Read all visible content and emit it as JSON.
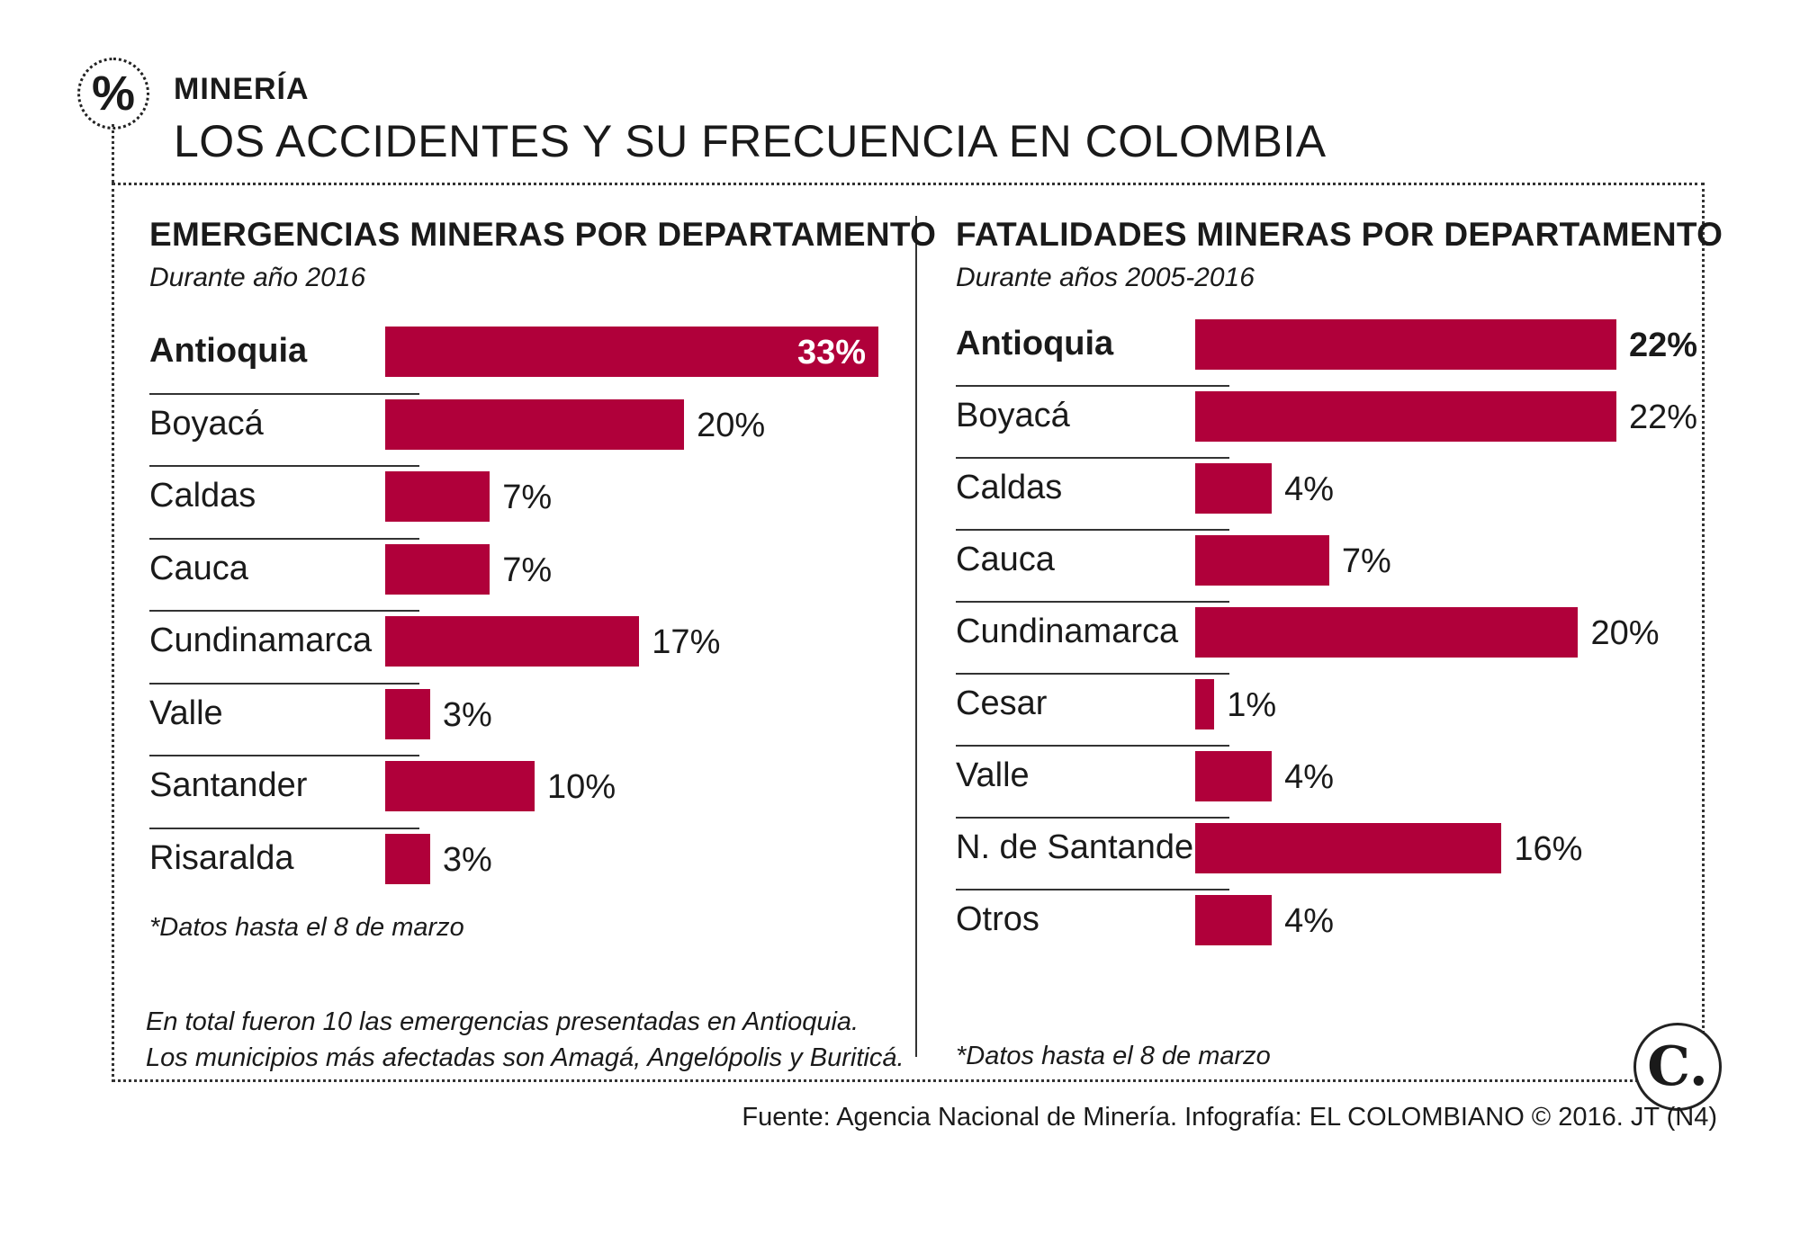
{
  "header": {
    "icon": "percent-icon",
    "section": "MINERÍA",
    "title": "LOS ACCIDENTES Y SU FRECUENCIA EN COLOMBIA"
  },
  "left": {
    "title": "EMERGENCIAS MINERAS POR DEPARTAMENTO",
    "subtitle": "Durante año 2016",
    "footnote": "*Datos hasta el 8 de marzo",
    "note_line1": "En total fueron 10 las emergencias presentadas en Antioquia.",
    "note_line2": "Los municipios más afectadas son Amagá, Angelópolis y Buriticá."
  },
  "right": {
    "title": "FATALIDADES MINERAS POR DEPARTAMENTO",
    "subtitle": "Durante años 2005-2016",
    "footnote": "*Datos hasta el 8 de marzo"
  },
  "source": "Fuente: Agencia Nacional de Minería. Infografía: EL COLOMBIANO © 2016. JT (N4)",
  "brand": "C.",
  "colors": {
    "bar": "#b0003a"
  },
  "chart_data": [
    {
      "type": "bar",
      "orientation": "horizontal",
      "title": "EMERGENCIAS MINERAS POR DEPARTAMENTO",
      "subtitle": "Durante año 2016",
      "unit": "%",
      "categories": [
        "Antioquia",
        "Boyacá",
        "Caldas",
        "Cauca",
        "Cundinamarca",
        "Valle",
        "Santander",
        "Risaralda"
      ],
      "values": [
        33,
        20,
        7,
        7,
        17,
        3,
        10,
        3
      ],
      "labels": [
        "33%",
        "20%",
        "7%",
        "7%",
        "17%",
        "3%",
        "10%",
        "3%"
      ],
      "xlim": [
        0,
        33
      ]
    },
    {
      "type": "bar",
      "orientation": "horizontal",
      "title": "FATALIDADES MINERAS POR DEPARTAMENTO",
      "subtitle": "Durante años 2005-2016",
      "unit": "%",
      "categories": [
        "Antioquia",
        "Boyacá",
        "Caldas",
        "Cauca",
        "Cundinamarca",
        "Cesar",
        "Valle",
        "N. de Santander",
        "Otros"
      ],
      "values": [
        22,
        22,
        4,
        7,
        20,
        1,
        4,
        16,
        4
      ],
      "labels": [
        "22%",
        "22%",
        "4%",
        "7%",
        "20%",
        "1%",
        "4%",
        "16%",
        "4%"
      ],
      "xlim": [
        0,
        22
      ]
    }
  ]
}
